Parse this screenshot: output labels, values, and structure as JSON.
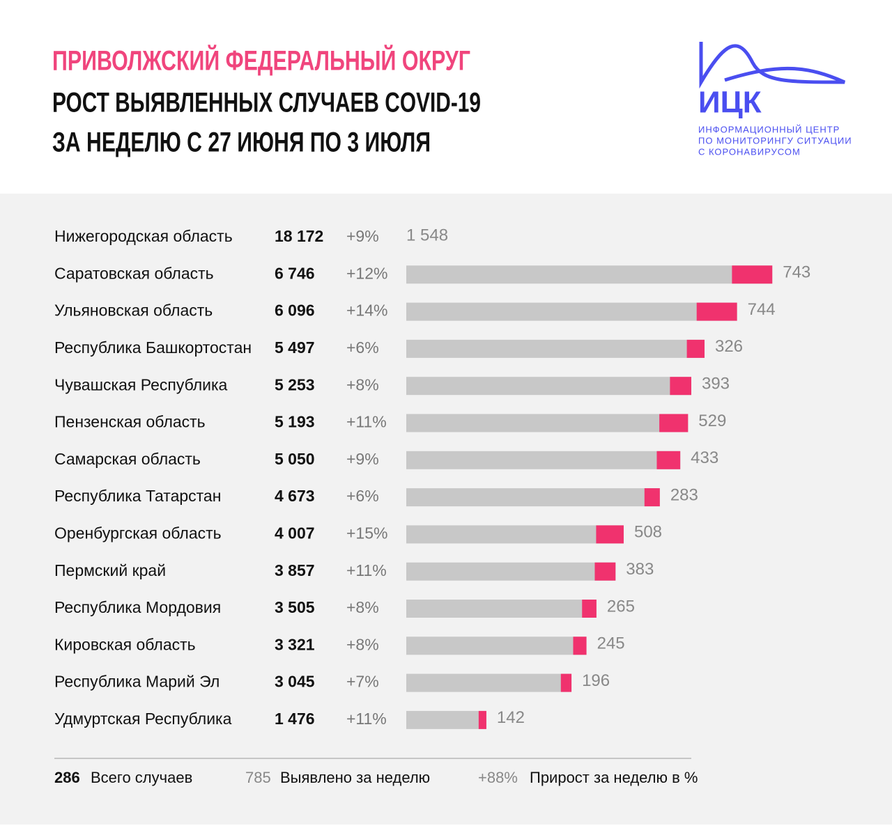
{
  "chart_data": {
    "type": "bar",
    "title": [
      "ПРИВОЛЖСКИЙ ФЕДЕРАЛЬНЫЙ ОКРУГ",
      "РОСТ ВЫЯВЛЕННЫХ СЛУЧАЕВ COVID-19",
      "ЗА НЕДЕЛЮ С 27 ИЮНЯ ПО 3 ИЮЛЯ"
    ],
    "logo": {
      "name": "ИЦК",
      "caption": [
        "ИНФОРМАЦИОННЫЙ ЦЕНТР",
        "ПО МОНИТОРИНГУ СИТУАЦИИ",
        "С КОРОНАВИРУСОМ"
      ]
    },
    "categories": [
      "Нижегородская область",
      "Саратовская область",
      "Ульяновская область",
      "Республика Башкортостан",
      "Чувашская Республика",
      "Пензенская область",
      "Самарская область",
      "Республика Татарстан",
      "Оренбургская область",
      "Пермский край",
      "Республика Мордовия",
      "Кировская область",
      "Республика Марий Эл",
      "Удмуртская Республика"
    ],
    "totals": {
      "values": [
        18172,
        6746,
        6096,
        5497,
        5253,
        5193,
        5050,
        4673,
        4007,
        3857,
        3505,
        3321,
        3045,
        1476
      ],
      "value_labels": [
        "18 172",
        "6 746",
        "6 096",
        "5 497",
        "5 253",
        "5 193",
        "5 050",
        "4 673",
        "4 007",
        "3 857",
        "3 505",
        "3 321",
        "3 045",
        "1 476"
      ],
      "color": "#c8c8c8"
    },
    "growth": {
      "values": [
        9,
        12,
        14,
        6,
        8,
        11,
        9,
        6,
        15,
        11,
        8,
        8,
        7,
        11
      ],
      "value_labels": [
        "+9%",
        "+12%",
        "+14%",
        "+6%",
        "+8%",
        "+11%",
        "+9%",
        "+6%",
        "+15%",
        "+11%",
        "+8%",
        "+8%",
        "+7%",
        "+11%"
      ]
    },
    "new": {
      "values": [
        1548,
        743,
        744,
        326,
        393,
        529,
        433,
        283,
        508,
        383,
        265,
        245,
        196,
        142
      ],
      "value_labels": [
        "1 548",
        "743",
        "744",
        "326",
        "393",
        "529",
        "433",
        "283",
        "508",
        "383",
        "265",
        "245",
        "196",
        "142"
      ],
      "color": "#f0326e"
    },
    "xlim": [
      0,
      7000
    ],
    "legend": [
      {
        "value": "286",
        "label": "Всего случаев"
      },
      {
        "value": "785",
        "label": "Выявлено за неделю"
      },
      {
        "value": "+88%",
        "label": "Прирост за неделю в %"
      }
    ]
  }
}
